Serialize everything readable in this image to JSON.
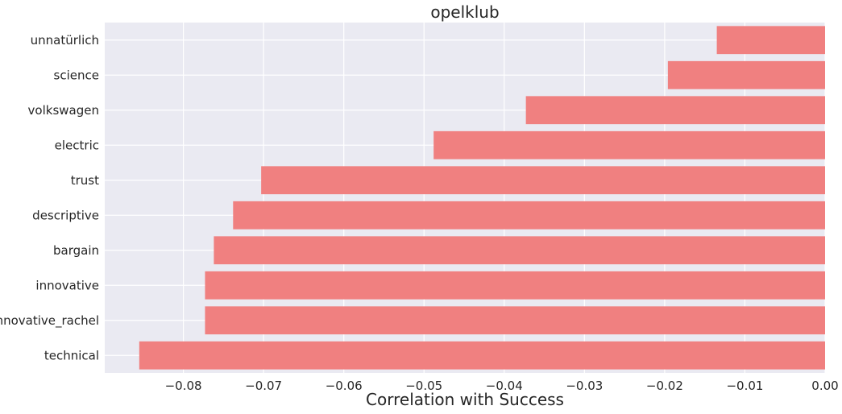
{
  "chart_data": {
    "type": "bar",
    "orientation": "horizontal",
    "title": "opelklub",
    "xlabel": "Correlation with Success",
    "ylabel": "",
    "categories": [
      "unnatürlich",
      "science",
      "volkswagen",
      "electric",
      "trust",
      "descriptive",
      "bargain",
      "innovative",
      "innovative_rachel",
      "technical"
    ],
    "values": [
      -0.0135,
      -0.0196,
      -0.0373,
      -0.0488,
      -0.0703,
      -0.0738,
      -0.0762,
      -0.0773,
      -0.0773,
      -0.0855
    ],
    "xlim": [
      -0.0898,
      0.0
    ],
    "xticks": [
      -0.08,
      -0.07,
      -0.06,
      -0.05,
      -0.04,
      -0.03,
      -0.02,
      -0.01,
      0.0
    ],
    "xtick_labels": [
      "−0.08",
      "−0.07",
      "−0.06",
      "−0.05",
      "−0.04",
      "−0.03",
      "−0.02",
      "−0.01",
      "0.00"
    ],
    "grid": true,
    "colors": {
      "bar": "#f08080",
      "background": "#eaeaf2",
      "grid": "#ffffff",
      "text": "#262626"
    }
  }
}
